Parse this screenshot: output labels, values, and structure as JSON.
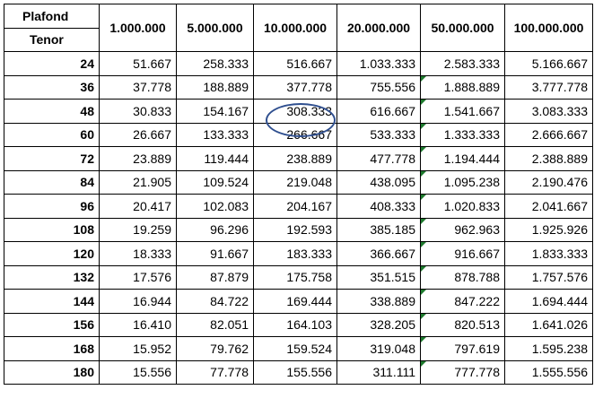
{
  "header": {
    "plafond_label": "Plafond",
    "tenor_label": "Tenor",
    "columns": [
      "1.000.000",
      "5.000.000",
      "10.000.000",
      "20.000.000",
      "50.000.000",
      "100.000.000"
    ]
  },
  "rows": [
    {
      "tenor": "24",
      "values": [
        "51.667",
        "258.333",
        "516.667",
        "1.033.333",
        "2.583.333",
        "5.166.667"
      ]
    },
    {
      "tenor": "36",
      "values": [
        "37.778",
        "188.889",
        "377.778",
        "755.556",
        "1.888.889",
        "3.777.778"
      ]
    },
    {
      "tenor": "48",
      "values": [
        "30.833",
        "154.167",
        "308.333",
        "616.667",
        "1.541.667",
        "3.083.333"
      ]
    },
    {
      "tenor": "60",
      "values": [
        "26.667",
        "133.333",
        "266.667",
        "533.333",
        "1.333.333",
        "2.666.667"
      ]
    },
    {
      "tenor": "72",
      "values": [
        "23.889",
        "119.444",
        "238.889",
        "477.778",
        "1.194.444",
        "2.388.889"
      ]
    },
    {
      "tenor": "84",
      "values": [
        "21.905",
        "109.524",
        "219.048",
        "438.095",
        "1.095.238",
        "2.190.476"
      ]
    },
    {
      "tenor": "96",
      "values": [
        "20.417",
        "102.083",
        "204.167",
        "408.333",
        "1.020.833",
        "2.041.667"
      ]
    },
    {
      "tenor": "108",
      "values": [
        "19.259",
        "96.296",
        "192.593",
        "385.185",
        "962.963",
        "1.925.926"
      ]
    },
    {
      "tenor": "120",
      "values": [
        "18.333",
        "91.667",
        "183.333",
        "366.667",
        "916.667",
        "1.833.333"
      ]
    },
    {
      "tenor": "132",
      "values": [
        "17.576",
        "87.879",
        "175.758",
        "351.515",
        "878.788",
        "1.757.576"
      ]
    },
    {
      "tenor": "144",
      "values": [
        "16.944",
        "84.722",
        "169.444",
        "338.889",
        "847.222",
        "1.694.444"
      ]
    },
    {
      "tenor": "156",
      "values": [
        "16.410",
        "82.051",
        "164.103",
        "328.205",
        "820.513",
        "1.641.026"
      ]
    },
    {
      "tenor": "168",
      "values": [
        "15.952",
        "79.762",
        "159.524",
        "319.048",
        "797.619",
        "1.595.238"
      ]
    },
    {
      "tenor": "180",
      "values": [
        "15.556",
        "77.778",
        "155.556",
        "311.111",
        "777.778",
        "1.555.556"
      ]
    }
  ],
  "highlight": {
    "row": 2,
    "column": 2,
    "color": "#2f4f8f"
  },
  "cell_marker_color": "#1e7a2e"
}
